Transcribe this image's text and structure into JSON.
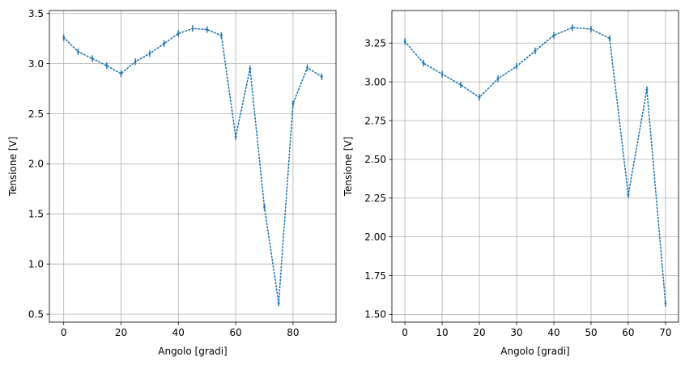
{
  "colors": {
    "series": "#1f77b4",
    "grid": "#b0b0b0",
    "axis": "#000000"
  },
  "chart_data": [
    {
      "type": "line",
      "line_style": "dotted",
      "markers": "errorbar",
      "xlabel": "Angolo [gradi]",
      "ylabel": "Tensione [V]",
      "xlim": [
        -5,
        95
      ],
      "ylim": [
        0.42,
        3.53
      ],
      "grid": true,
      "xticks": [
        0,
        20,
        40,
        60,
        80
      ],
      "xtick_labels": [
        "0",
        "20",
        "40",
        "60",
        "80"
      ],
      "yticks": [
        0.5,
        1.0,
        1.5,
        2.0,
        2.5,
        3.0,
        3.5
      ],
      "ytick_labels": [
        "0.5",
        "1.0",
        "1.5",
        "2.0",
        "2.5",
        "3.0",
        "3.5"
      ],
      "series": [
        {
          "x": [
            0,
            5,
            10,
            15,
            20,
            25,
            30,
            35,
            40,
            45,
            50,
            55,
            60,
            65,
            70,
            75,
            80,
            85,
            90
          ],
          "y": [
            3.26,
            3.12,
            3.05,
            2.98,
            2.9,
            3.02,
            3.1,
            3.2,
            3.3,
            3.35,
            3.34,
            3.28,
            2.27,
            2.95,
            1.57,
            0.61,
            2.6,
            2.96,
            2.87
          ],
          "yerr": 0.02
        }
      ]
    },
    {
      "type": "line",
      "line_style": "dotted",
      "markers": "errorbar",
      "xlabel": "Angolo [gradi]",
      "ylabel": "Tensione [V]",
      "xlim": [
        -3.5,
        73.5
      ],
      "ylim": [
        1.45,
        3.46
      ],
      "grid": true,
      "xticks": [
        0,
        10,
        20,
        30,
        40,
        50,
        60,
        70
      ],
      "xtick_labels": [
        "0",
        "10",
        "20",
        "30",
        "40",
        "50",
        "60",
        "70"
      ],
      "yticks": [
        1.5,
        1.75,
        2.0,
        2.25,
        2.5,
        2.75,
        3.0,
        3.25
      ],
      "ytick_labels": [
        "1.50",
        "1.75",
        "2.00",
        "2.25",
        "2.50",
        "2.75",
        "3.00",
        "3.25"
      ],
      "series": [
        {
          "x": [
            0,
            5,
            10,
            15,
            20,
            25,
            30,
            35,
            40,
            45,
            50,
            55,
            60,
            65,
            70
          ],
          "y": [
            3.26,
            3.12,
            3.05,
            2.98,
            2.9,
            3.02,
            3.1,
            3.2,
            3.3,
            3.35,
            3.34,
            3.28,
            2.27,
            2.95,
            1.57
          ],
          "yerr": 0.02
        }
      ]
    }
  ]
}
